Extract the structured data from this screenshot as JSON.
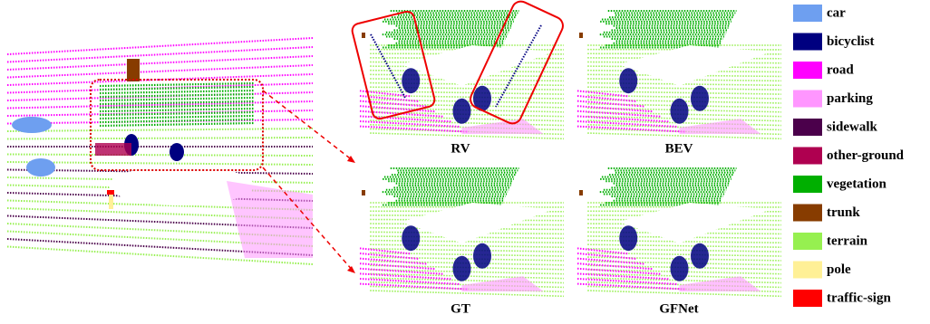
{
  "panels": [
    {
      "caption": "RV"
    },
    {
      "caption": "BEV"
    },
    {
      "caption": "GT"
    },
    {
      "caption": "GFNet"
    }
  ],
  "legend": [
    {
      "label": "car",
      "color": "#6e9ff0"
    },
    {
      "label": "bicyclist",
      "color": "#000080"
    },
    {
      "label": "road",
      "color": "#ff00ff"
    },
    {
      "label": "parking",
      "color": "#ff96ff"
    },
    {
      "label": "sidewalk",
      "color": "#4b004b"
    },
    {
      "label": "other-ground",
      "color": "#af0050"
    },
    {
      "label": "vegetation",
      "color": "#00af00"
    },
    {
      "label": "trunk",
      "color": "#873c00"
    },
    {
      "label": "terrain",
      "color": "#96f050"
    },
    {
      "label": "pole",
      "color": "#fff096"
    },
    {
      "label": "traffic-sign",
      "color": "#ff0000"
    }
  ]
}
